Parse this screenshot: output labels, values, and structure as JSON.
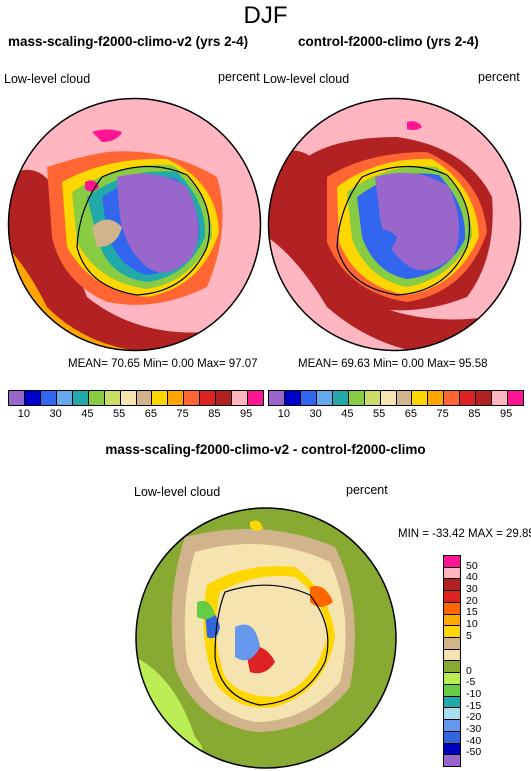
{
  "figure": {
    "title": "DJF"
  },
  "panels": [
    {
      "title": "mass-scaling-f2000-climo-v2 (yrs 2-4)",
      "left_label": "Low-level cloud",
      "right_label": "percent",
      "stats": "MEAN=  70.65  Min=   0.00  Max=  97.07"
    },
    {
      "title": "control-f2000-climo (yrs 2-4)",
      "left_label": "Low-level cloud",
      "right_label": "percent",
      "stats": "MEAN=  69.63  Min=   0.00  Max=  95.58"
    },
    {
      "title": "mass-scaling-f2000-climo-v2 - control-f2000-climo",
      "left_label": "Low-level cloud",
      "right_label": "percent",
      "stats": "MIN = -33.42 MAX =  29.85"
    }
  ],
  "colorbar_abs": {
    "colors": [
      "#9966cc",
      "#0000cc",
      "#3366ee",
      "#66aaee",
      "#22aaaa",
      "#88cc44",
      "#ccdd66",
      "#f5e4b0",
      "#d2b48c",
      "#ffd700",
      "#ffa500",
      "#ff6633",
      "#dd2222",
      "#b22222",
      "#ffb6c1",
      "#ff1493"
    ],
    "ticks": [
      "10",
      "30",
      "45",
      "55",
      "65",
      "75",
      "85",
      "95"
    ]
  },
  "colorbar_diff": {
    "colors": [
      "#ff1493",
      "#ffb6c1",
      "#b22222",
      "#dd2222",
      "#ff6600",
      "#ffaa00",
      "#ffd700",
      "#d2b48c",
      "#f5e4b0",
      "#88aa33",
      "#bbee55",
      "#66cc44",
      "#22aaaa",
      "#aaddee",
      "#6699ee",
      "#3366dd",
      "#0000bb",
      "#9966cc"
    ],
    "ticks": [
      "50",
      "40",
      "30",
      "20",
      "15",
      "10",
      "5",
      "0",
      "-5",
      "-10",
      "-15",
      "-20",
      "-30",
      "-40",
      "-50"
    ]
  }
}
